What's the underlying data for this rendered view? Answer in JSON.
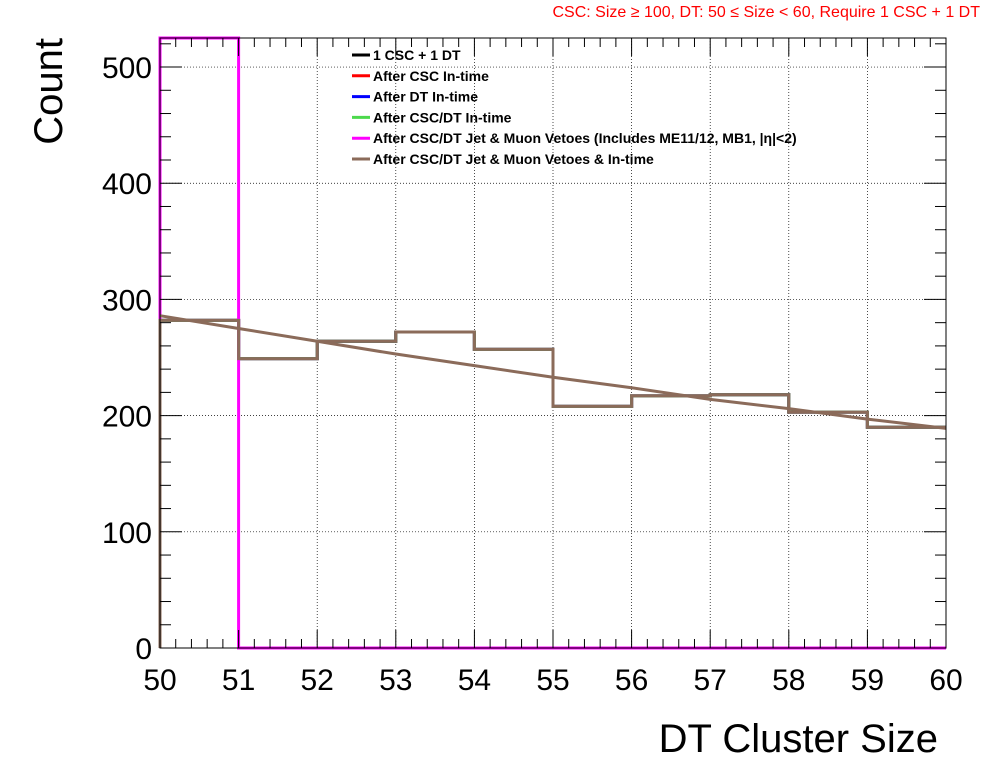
{
  "chart_data": {
    "type": "line",
    "title": "CSC: Size  ≥ 100, DT: 50  ≤ Size < 60, Require 1 CSC + 1 DT",
    "xlabel": "DT Cluster Size",
    "ylabel": "Count",
    "xlim": [
      50,
      60
    ],
    "ylim": [
      0,
      525
    ],
    "x_ticks": [
      "50",
      "51",
      "52",
      "53",
      "54",
      "55",
      "56",
      "57",
      "58",
      "59",
      "60"
    ],
    "y_ticks": [
      "0",
      "100",
      "200",
      "300",
      "400",
      "500"
    ],
    "grid": true,
    "legend_position": "top-center",
    "bin_edges": [
      50,
      51,
      52,
      53,
      54,
      55,
      56,
      57,
      58,
      59,
      60
    ],
    "series": [
      {
        "name": "1 CSC + 1 DT",
        "color": "#000000",
        "kind": "histogram",
        "values": [
          282,
          249,
          264,
          272,
          257,
          208,
          217,
          218,
          203,
          190
        ]
      },
      {
        "name": "After CSC In-time",
        "color": "#ff0000",
        "kind": "histogram",
        "values": [
          282,
          249,
          264,
          272,
          257,
          208,
          217,
          218,
          203,
          190
        ]
      },
      {
        "name": "After DT In-time",
        "color": "#0000ff",
        "kind": "histogram",
        "values": [
          282,
          249,
          264,
          272,
          257,
          208,
          217,
          218,
          203,
          190
        ]
      },
      {
        "name": "After CSC/DT In-time",
        "color": "#4cd94c",
        "kind": "histogram",
        "values": [
          282,
          249,
          264,
          272,
          257,
          208,
          217,
          218,
          203,
          190
        ]
      },
      {
        "name": "After CSC/DT Jet & Muon Vetoes (Includes ME11/12, MB1, |η|<2)",
        "color": "#ff00ff",
        "kind": "histogram",
        "values": [
          525,
          0,
          0,
          0,
          0,
          0,
          0,
          0,
          0,
          0
        ]
      },
      {
        "name": "After CSC/DT Jet & Muon Vetoes & In-time",
        "color": "#8b6b5a",
        "kind": "histogram",
        "values": [
          282,
          249,
          264,
          272,
          257,
          208,
          217,
          218,
          203,
          190
        ]
      }
    ],
    "fit": {
      "color": "#8b6b5a",
      "x": [
        50,
        51,
        52,
        53,
        54,
        55,
        56,
        57,
        58,
        59,
        60
      ],
      "y": [
        286,
        275,
        264,
        253,
        243,
        233,
        224,
        214,
        206,
        197,
        189
      ]
    }
  }
}
